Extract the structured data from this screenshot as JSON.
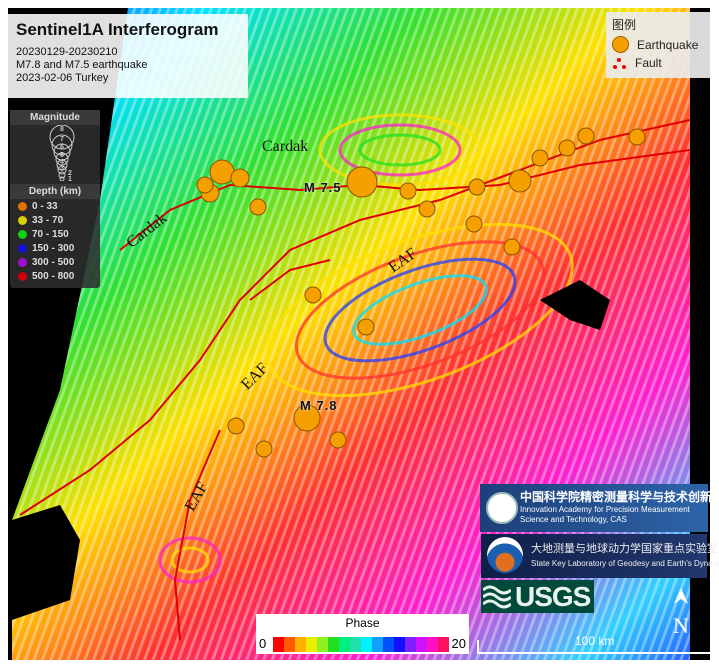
{
  "title": {
    "heading": "Sentinel1A Interferogram",
    "lines": [
      "20230129-20230210",
      "M7.8 and M7.5 earthquake",
      "2023-02-06 Turkey"
    ]
  },
  "legend": {
    "title": "图例",
    "items": [
      {
        "label": "Earthquake",
        "icon": "orange-circle-icon",
        "color": "#f5a000"
      },
      {
        "label": "Fault",
        "icon": "red-dots-fault-icon",
        "color": "#e00000"
      }
    ]
  },
  "magnitude_panel": {
    "title": "Magnitude",
    "levels": [
      "8",
      "7",
      "6",
      "5",
      "4",
      "3",
      "2",
      "1"
    ],
    "depth_title": "Depth (km)",
    "depths": [
      {
        "label": "0 - 33",
        "color": "#e07000"
      },
      {
        "label": "33 - 70",
        "color": "#d8d000"
      },
      {
        "label": "70 - 150",
        "color": "#10d010"
      },
      {
        "label": "150 - 300",
        "color": "#1010d0"
      },
      {
        "label": "300 - 500",
        "color": "#a010d0"
      },
      {
        "label": "500 - 800",
        "color": "#d00010"
      }
    ]
  },
  "map_labels": {
    "mag_a": "M 7.5",
    "mag_b": "M 7.8",
    "cardak_1": "Cardak",
    "cardak_2": "Cardak",
    "eaf_1": "EAF",
    "eaf_2": "EAF",
    "eaf_3": "EAF"
  },
  "phase_bar": {
    "title": "Phase",
    "min": "0",
    "max": "20",
    "colors": [
      "#ff0000",
      "#ff5a00",
      "#ffb000",
      "#e8f000",
      "#90f020",
      "#20e020",
      "#00f080",
      "#20e0b0",
      "#00f0ff",
      "#10a0ff",
      "#0050ff",
      "#1010ff",
      "#8020ff",
      "#d010ff",
      "#ff10c0",
      "#ff1060"
    ]
  },
  "logos": {
    "cas_cn": "中国科学院精密测量科学与技术创新研究院",
    "cas_en": "Innovation Academy for Precision Measurement Science and Technology, CAS",
    "lab_cn": "大地测量与地球动力学国家重点实验室",
    "lab_en": "State Key Laboratory of Geodesy and Earth's Dynamics",
    "usgs": "USGS"
  },
  "north_arrow": "N",
  "scale_bar": "100 km",
  "earthquakes": [
    {
      "mag": 7.5
    },
    {
      "mag": 7.8
    }
  ]
}
